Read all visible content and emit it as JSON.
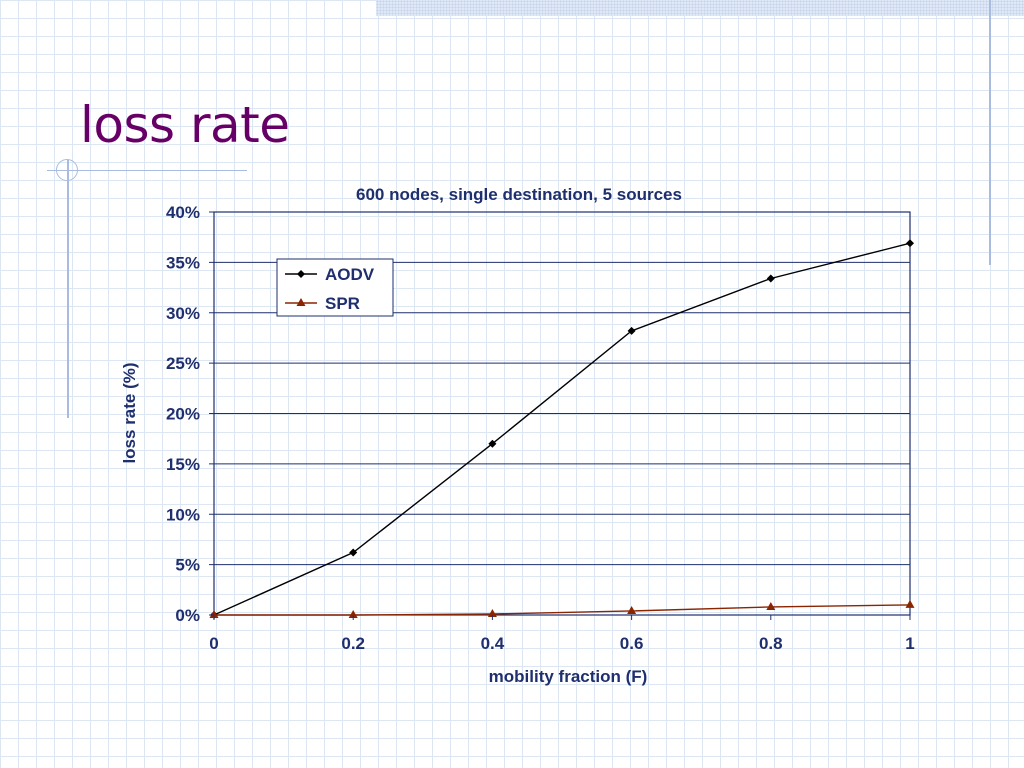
{
  "slide": {
    "title": "loss rate"
  },
  "chart_data": {
    "type": "line",
    "title": "600 nodes, single destination, 5 sources",
    "xlabel": "mobility fraction (F)",
    "ylabel": "loss rate (%)",
    "x": [
      0,
      0.2,
      0.4,
      0.6,
      0.8,
      1
    ],
    "xticks": [
      "0",
      "0.2",
      "0.4",
      "0.6",
      "0.8",
      "1"
    ],
    "yticks": [
      "0%",
      "5%",
      "10%",
      "15%",
      "20%",
      "25%",
      "30%",
      "35%",
      "40%"
    ],
    "ylim": [
      0,
      40
    ],
    "grid": "horizontal",
    "legend_position": "top-left",
    "series": [
      {
        "name": "AODV",
        "color": "#000000",
        "marker": "diamond",
        "values": [
          0,
          6.2,
          17.0,
          28.2,
          33.4,
          36.9
        ]
      },
      {
        "name": "SPR",
        "color": "#8b2500",
        "marker": "triangle",
        "values": [
          0,
          0,
          0.1,
          0.4,
          0.8,
          1.0
        ]
      }
    ]
  }
}
